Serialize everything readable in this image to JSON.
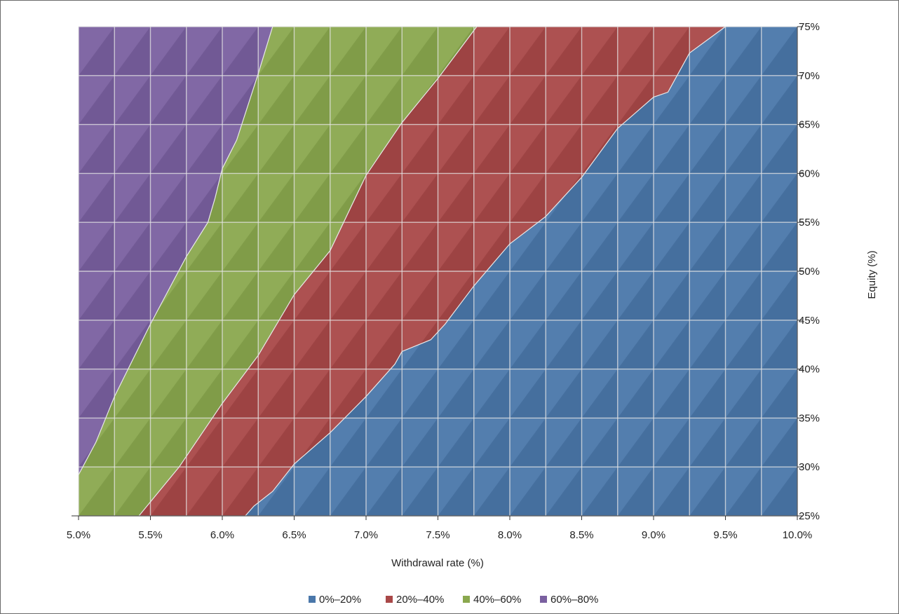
{
  "chart_data": {
    "type": "area",
    "subtype": "filled-contour",
    "title": "",
    "xlabel": "Withdrawal rate (%)",
    "ylabel": "Equity (%)",
    "xlim": [
      5.0,
      10.0
    ],
    "ylim": [
      25,
      75
    ],
    "x_ticks": [
      "5.0%",
      "5.5%",
      "6.0%",
      "6.5%",
      "7.0%",
      "7.5%",
      "8.0%",
      "8.5%",
      "9.0%",
      "9.5%",
      "10.0%"
    ],
    "y_ticks": [
      "25%",
      "30%",
      "35%",
      "40%",
      "45%",
      "50%",
      "55%",
      "60%",
      "65%",
      "70%",
      "75%"
    ],
    "y_axis_side": "right",
    "grid": true,
    "legend_position": "bottom",
    "bands": [
      {
        "name": "0%–20%",
        "color": "#4a77aa"
      },
      {
        "name": "20%–40%",
        "color": "#a94848"
      },
      {
        "name": "40%–60%",
        "color": "#8aa84e"
      },
      {
        "name": "60%–80%",
        "color": "#7a60a0"
      }
    ],
    "boundaries": [
      {
        "between": [
          "0%–20%",
          "20%–40%"
        ],
        "points": [
          [
            6.16,
            25
          ],
          [
            6.22,
            26
          ],
          [
            6.35,
            27.5
          ],
          [
            6.5,
            30.3
          ],
          [
            6.75,
            33.5
          ],
          [
            7.0,
            37.2
          ],
          [
            7.2,
            40.5
          ],
          [
            7.25,
            41.8
          ],
          [
            7.45,
            43
          ],
          [
            7.55,
            44.6
          ],
          [
            7.75,
            48.5
          ],
          [
            8.0,
            52.8
          ],
          [
            8.25,
            55.6
          ],
          [
            8.5,
            59.6
          ],
          [
            8.75,
            64.6
          ],
          [
            9.0,
            67.8
          ],
          [
            9.1,
            68.3
          ],
          [
            9.25,
            72.3
          ],
          [
            9.5,
            75
          ]
        ]
      },
      {
        "between": [
          "20%–40%",
          "40%–60%"
        ],
        "points": [
          [
            5.42,
            25
          ],
          [
            5.7,
            30
          ],
          [
            6.0,
            36.5
          ],
          [
            6.25,
            41.4
          ],
          [
            6.5,
            47.6
          ],
          [
            6.75,
            52.1
          ],
          [
            7.0,
            59.8
          ],
          [
            7.25,
            65.2
          ],
          [
            7.5,
            69.7
          ],
          [
            7.77,
            75
          ]
        ]
      },
      {
        "between": [
          "40%–60%",
          "60%–80%"
        ],
        "points": [
          [
            5.0,
            29.2
          ],
          [
            5.12,
            32.5
          ],
          [
            5.25,
            37.2
          ],
          [
            5.5,
            44.6
          ],
          [
            5.75,
            51.5
          ],
          [
            5.9,
            55
          ],
          [
            5.95,
            57.5
          ],
          [
            6.0,
            60.5
          ],
          [
            6.1,
            63.4
          ],
          [
            6.25,
            70.2
          ],
          [
            6.35,
            75
          ]
        ]
      }
    ],
    "annotations": []
  }
}
